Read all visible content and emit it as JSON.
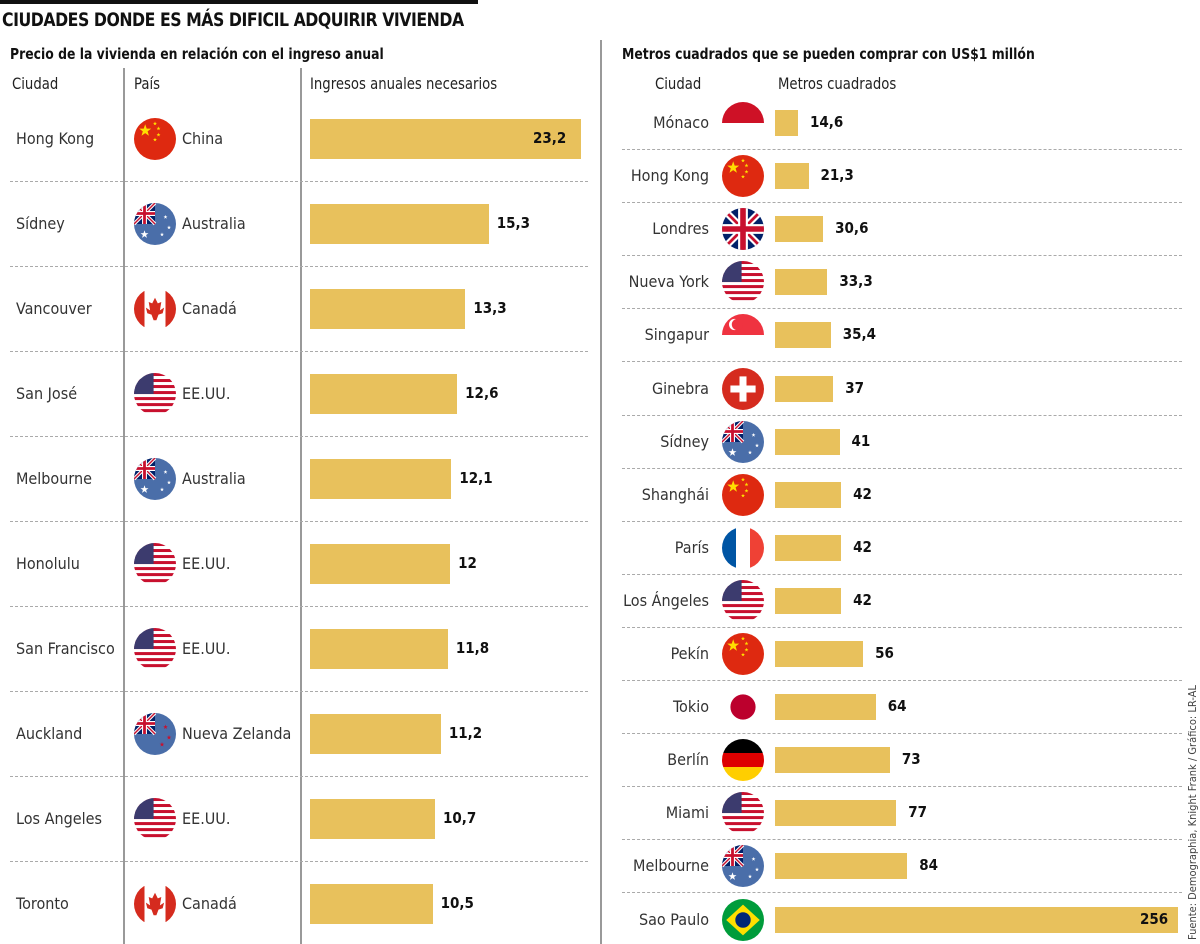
{
  "title": "CIUDADES DONDE ES MÁS DIFICIL ADQUIRIR VIVIENDA",
  "source": "Fuente: Demographia, Knight Frank / Gráfico: LR-AL",
  "colors": {
    "bar": "#e8c15c"
  },
  "chart_data": [
    {
      "type": "bar",
      "orientation": "horizontal",
      "title": "Precio de la vivienda en relación con el ingreso anual",
      "headers": {
        "city": "Ciudad",
        "country": "País",
        "value": "Ingresos anuales necesarios"
      },
      "categories": [
        "Hong Kong",
        "Sídney",
        "Vancouver",
        "San José",
        "Melbourne",
        "Honolulu",
        "San Francisco",
        "Auckland",
        "Los Angeles",
        "Toronto"
      ],
      "countries": [
        "China",
        "Australia",
        "Canadá",
        "EE.UU.",
        "Australia",
        "EE.UU.",
        "EE.UU.",
        "Nueva Zelanda",
        "EE.UU.",
        "Canadá"
      ],
      "flags": [
        "china",
        "australia",
        "canada",
        "usa",
        "australia",
        "usa",
        "usa",
        "new-zealand",
        "usa",
        "canada"
      ],
      "values": [
        23.2,
        15.3,
        13.3,
        12.6,
        12.1,
        12,
        11.8,
        11.2,
        10.7,
        10.5
      ],
      "labels": [
        "23,2",
        "15,3",
        "13,3",
        "12,6",
        "12,1",
        "12",
        "11,8",
        "11,2",
        "10,7",
        "10,5"
      ]
    },
    {
      "type": "bar",
      "orientation": "horizontal",
      "title": "Metros cuadrados que se pueden comprar con US$1 millón",
      "headers": {
        "city": "Ciudad",
        "value": "Metros cuadrados"
      },
      "categories": [
        "Mónaco",
        "Hong Kong",
        "Londres",
        "Nueva York",
        "Singapur",
        "Ginebra",
        "Sídney",
        "Shanghái",
        "París",
        "Los Ángeles",
        "Pekín",
        "Tokio",
        "Berlín",
        "Miami",
        "Melbourne",
        "Sao Paulo"
      ],
      "flags": [
        "monaco",
        "china",
        "uk",
        "usa",
        "singapore",
        "switzerland",
        "australia",
        "china",
        "france",
        "usa",
        "china",
        "japan",
        "germany",
        "usa",
        "australia",
        "brazil"
      ],
      "values": [
        14.6,
        21.3,
        30.6,
        33.3,
        35.4,
        37,
        41,
        42,
        42,
        42,
        56,
        64,
        73,
        77,
        84,
        256
      ],
      "labels": [
        "14,6",
        "21,3",
        "30,6",
        "33,3",
        "35,4",
        "37",
        "41",
        "42",
        "42",
        "42",
        "56",
        "64",
        "73",
        "77",
        "84",
        "256"
      ]
    }
  ]
}
